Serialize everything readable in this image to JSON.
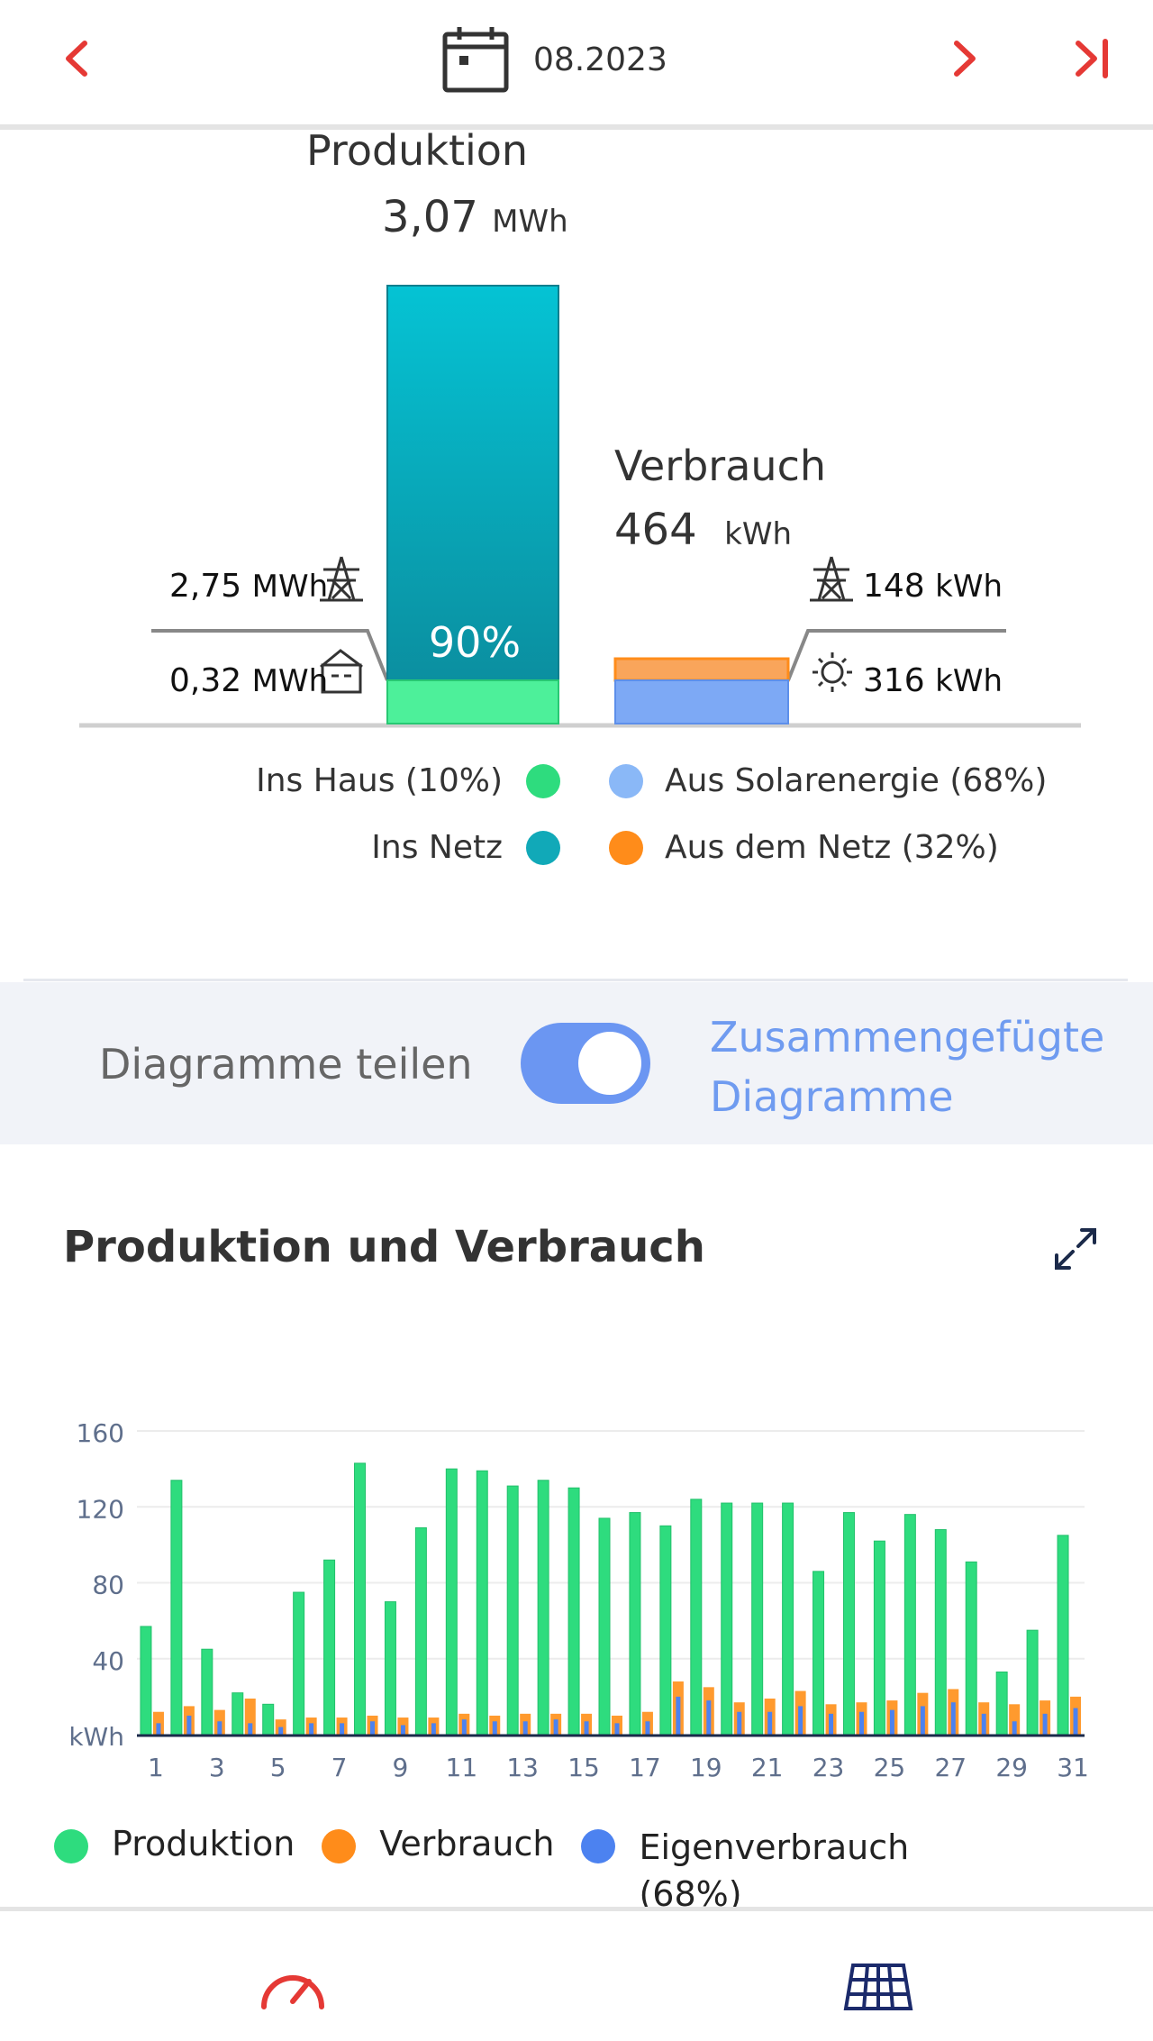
{
  "header": {
    "date": "08.2023",
    "icons": {
      "prev": "chevron-left-icon",
      "next": "chevron-right-icon",
      "last": "skip-to-end-icon",
      "calendar": "calendar-icon"
    },
    "accent": "#e53935"
  },
  "overview": {
    "production_title": "Produktion",
    "production_value": "3,07",
    "production_unit": "MWh",
    "production_grid_value": "2,75",
    "production_grid_unit": "MWh",
    "production_house_value": "0,32",
    "production_house_unit": "MWh",
    "production_share_percent": "90%",
    "production_grid_fraction": 0.9,
    "consumption_title": "Verbrauch",
    "consumption_value": "464",
    "consumption_unit": "kWh",
    "consumption_grid_value": "148",
    "consumption_grid_unit": "kWh",
    "consumption_solar_value": "316",
    "consumption_solar_unit": "kWh",
    "colors": {
      "ins_haus": "#2edc7e",
      "ins_netz": "#11a9b8",
      "solar": "#8ab8f7",
      "netz": "#ff8c1a"
    },
    "legend": [
      {
        "label": "Ins Haus (10%)"
      },
      {
        "label": "Aus Solarenergie (68%)"
      },
      {
        "label": "Ins Netz"
      },
      {
        "label": "Aus dem Netz (32%)"
      }
    ]
  },
  "toggle": {
    "left_label": "Diagramme teilen",
    "right_label_line1": "Zusammengefügte",
    "right_label_line2": "Diagramme",
    "state": "on"
  },
  "chart_section": {
    "title": "Produktion und Verbrauch",
    "expand_icon": "expand-icon"
  },
  "chart_data": {
    "type": "bar",
    "ylabel": "kWh",
    "ylim": [
      0,
      160
    ],
    "yticks": [
      "kWh",
      "40",
      "80",
      "120",
      "160"
    ],
    "xticks": [
      "1",
      "3",
      "5",
      "7",
      "9",
      "11",
      "13",
      "15",
      "17",
      "19",
      "21",
      "23",
      "25",
      "27",
      "29",
      "31"
    ],
    "categories": [
      1,
      2,
      3,
      4,
      5,
      6,
      7,
      8,
      9,
      10,
      11,
      12,
      13,
      14,
      15,
      16,
      17,
      18,
      19,
      20,
      21,
      22,
      23,
      24,
      25,
      26,
      27,
      28,
      29,
      30,
      31
    ],
    "series": [
      {
        "name": "Produktion",
        "color": "#2edc7e",
        "values": [
          57,
          134,
          45,
          22,
          16,
          75,
          92,
          143,
          70,
          109,
          140,
          139,
          131,
          134,
          130,
          114,
          117,
          110,
          124,
          122,
          122,
          122,
          86,
          117,
          102,
          116,
          108,
          91,
          33,
          55,
          105
        ]
      },
      {
        "name": "Verbrauch",
        "color": "#ff8c1a",
        "values": [
          12,
          15,
          13,
          19,
          8,
          9,
          9,
          10,
          9,
          9,
          11,
          10,
          11,
          11,
          11,
          10,
          12,
          28,
          25,
          17,
          19,
          23,
          16,
          17,
          18,
          22,
          24,
          17,
          16,
          18,
          20
        ]
      },
      {
        "name": "Eigenverbrauch",
        "color": "#4c82f0",
        "values": [
          6,
          10,
          7,
          6,
          4,
          6,
          6,
          7,
          5,
          6,
          8,
          7,
          7,
          8,
          7,
          6,
          7,
          20,
          18,
          12,
          12,
          15,
          11,
          12,
          13,
          15,
          17,
          11,
          7,
          11,
          14
        ]
      }
    ],
    "legend_position": "bottom",
    "grid": true
  },
  "chart_legend": {
    "production": "Produktion",
    "consumption": "Verbrauch",
    "self_consumption_line1": "Eigenverbrauch",
    "self_consumption_line2": "(68%)"
  },
  "bottom_nav": {
    "items": [
      {
        "icon": "speedometer-icon"
      },
      {
        "icon": "solar-panel-icon"
      }
    ]
  }
}
